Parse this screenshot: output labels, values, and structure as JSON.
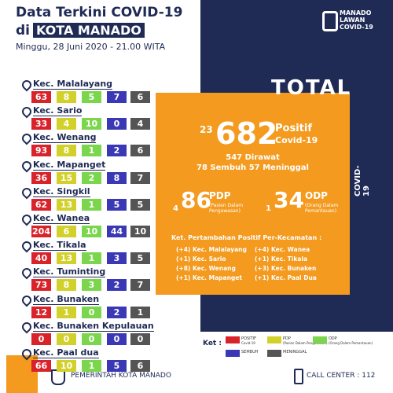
{
  "header": {
    "title": "Data Terkini COVID-19",
    "di": "di",
    "city": "KOTA MANADO",
    "date": "Minggu, 28 Juni 2020 - 21.00 WITA"
  },
  "logo": {
    "line1": "MANADO",
    "line2": "LAWAN",
    "line3": "COVID-19"
  },
  "side_label": "COVID-19",
  "total": {
    "heading": "TOTAL",
    "positif_increase": "23",
    "positif": "682",
    "positif_label": "Positif",
    "positif_sub": "Covid-19",
    "dirawat": "547 Dirawat",
    "sembuh_meninggal": "78 Sembuh  57 Meninggal",
    "pdp_increase": "4",
    "pdp": "86",
    "pdp_label": "PDP",
    "pdp_sub": "(Pasien Dalam Pengawasan)",
    "odp_increase": "1",
    "odp": "34",
    "odp_label": "ODP",
    "odp_sub": "(Orang Dalam Pemantauan)",
    "ket_title": "Ket. Pertambahan Positif Per-Kecamatan :",
    "ket_items": [
      "(+4) Kec. Malalayang",
      "(+1) Kec. Sario",
      "(+8) Kec. Wenang",
      "(+1) Kec. Mapanget",
      "(+4) Kec. Wanea",
      "(+1) Kec. Tikala",
      "(+3) Kec. Bunaken",
      "(+1) Kec. Paal Dua"
    ]
  },
  "districts": [
    {
      "name": "Kec. Malalayang",
      "values": [
        "63",
        "8",
        "5",
        "7",
        "6"
      ]
    },
    {
      "name": "Kec. Sario",
      "values": [
        "33",
        "4",
        "10",
        "0",
        "4"
      ]
    },
    {
      "name": "Kec. Wenang",
      "values": [
        "93",
        "8",
        "1",
        "2",
        "6"
      ]
    },
    {
      "name": "Kec. Mapanget",
      "values": [
        "36",
        "15",
        "2",
        "8",
        "7"
      ]
    },
    {
      "name": "Kec. Singkil",
      "values": [
        "62",
        "13",
        "1",
        "5",
        "5"
      ]
    },
    {
      "name": "Kec. Wanea",
      "values": [
        "204",
        "6",
        "10",
        "44",
        "10"
      ]
    },
    {
      "name": "Kec. Tikala",
      "values": [
        "40",
        "13",
        "1",
        "3",
        "5"
      ]
    },
    {
      "name": "Kec. Tuminting",
      "values": [
        "73",
        "8",
        "3",
        "2",
        "7"
      ]
    },
    {
      "name": "Kec. Bunaken",
      "values": [
        "12",
        "1",
        "0",
        "2",
        "1"
      ]
    },
    {
      "name": "Kec. Bunaken Kepulauan",
      "values": [
        "0",
        "0",
        "0",
        "0",
        "0"
      ]
    },
    {
      "name": "Kec. Paal dua",
      "values": [
        "66",
        "10",
        "1",
        "5",
        "6"
      ]
    }
  ],
  "legend": {
    "title": "Ket :",
    "items": [
      {
        "label": "POSITIF",
        "sub": "Covid-19"
      },
      {
        "label": "PDP",
        "sub": "(Pasien Dalam Pengawasan)"
      },
      {
        "label": "ODP",
        "sub": "(Orang Dalam Pemantauan)"
      },
      {
        "label": "SEMBUH",
        "sub": ""
      },
      {
        "label": "MENINGGAL",
        "sub": ""
      }
    ]
  },
  "footer": {
    "org": "PEMERINTAH KOTA MANADO",
    "call_center": "CALL CENTER : 112"
  }
}
